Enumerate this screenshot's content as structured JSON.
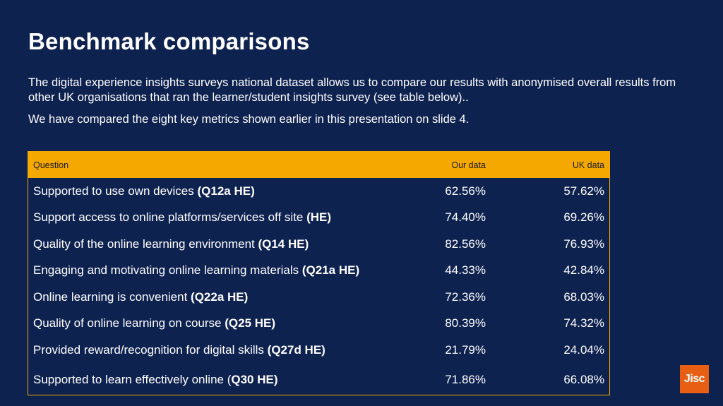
{
  "slide": {
    "title": "Benchmark comparisons",
    "paragraph1": "The digital experience insights surveys national dataset allows us to compare our results with anonymised overall results from other UK organisations that ran the learner/student insights survey (see table below)..",
    "paragraph2": "We have compared the eight key metrics shown earlier in this presentation on slide 4."
  },
  "table": {
    "headers": {
      "question": "Question",
      "our": "Our data",
      "uk": "UK data"
    },
    "rows": [
      {
        "text": "Supported to use own devices ",
        "code": "(Q12a HE)",
        "our": "62.56%",
        "uk": "57.62%"
      },
      {
        "text": "Support access to online platforms/services off site ",
        "code": "(HE)",
        "our": "74.40%",
        "uk": "69.26%"
      },
      {
        "text": "Quality of the online learning environment ",
        "code": "(Q14 HE)",
        "our": "82.56%",
        "uk": "76.93%"
      },
      {
        "text": "Engaging and motivating online learning materials ",
        "code": "(Q21a HE)",
        "our": "44.33%",
        "uk": "42.84%"
      },
      {
        "text": "Online learning is convenient ",
        "code": "(Q22a HE)",
        "our": "72.36%",
        "uk": "68.03%"
      },
      {
        "text": "Quality of online learning on course ",
        "code": "(Q25 HE)",
        "our": "80.39%",
        "uk": "74.32%"
      },
      {
        "text": "Provided reward/recognition for digital skills ",
        "code": "(Q27d HE)",
        "our": "21.79%",
        "uk": "24.04%"
      },
      {
        "text": "Supported to learn effectively online (",
        "code": "Q30 HE)",
        "our": "71.86%",
        "uk": "66.08%"
      }
    ]
  },
  "logo": {
    "text": "Jisc",
    "color": "#e85e13"
  }
}
